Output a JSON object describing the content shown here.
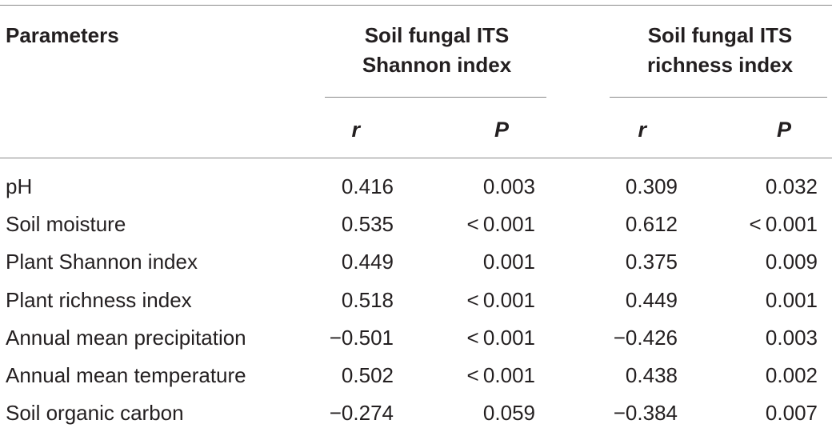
{
  "table": {
    "header_parameters": "Parameters",
    "groups": [
      {
        "line1": "Soil fungal ITS",
        "line2": "Shannon index"
      },
      {
        "line1": "Soil fungal ITS",
        "line2": "richness index"
      }
    ],
    "subheaders": [
      "r",
      "P",
      "r",
      "P"
    ],
    "rows": [
      {
        "param": "pH",
        "values": [
          "0.416",
          "0.003",
          "0.309",
          "0.032"
        ]
      },
      {
        "param": "Soil moisture",
        "values": [
          "0.535",
          "< 0.001",
          "0.612",
          "< 0.001"
        ]
      },
      {
        "param": "Plant Shannon index",
        "values": [
          "0.449",
          "0.001",
          "0.375",
          "0.009"
        ]
      },
      {
        "param": "Plant richness index",
        "values": [
          "0.518",
          "< 0.001",
          "0.449",
          "0.001"
        ]
      },
      {
        "param": "Annual mean precipitation",
        "values": [
          "−0.501",
          "< 0.001",
          "−0.426",
          "0.003"
        ]
      },
      {
        "param": "Annual mean temperature",
        "values": [
          "0.502",
          "< 0.001",
          "0.438",
          "0.002"
        ]
      },
      {
        "param": "Soil organic carbon",
        "values": [
          "−0.274",
          "0.059",
          "−0.384",
          "0.007"
        ]
      }
    ]
  }
}
